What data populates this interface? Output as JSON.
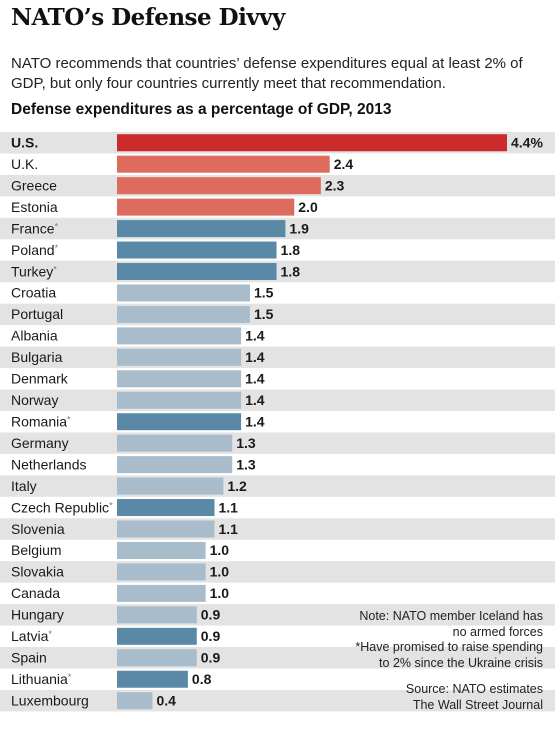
{
  "header": {
    "title": "NATO’s Defense Divvy",
    "subtitle": "NATO recommends that countries’ defense expenditures equal at least 2% of GDP, but only four countries currently meet that recommendation."
  },
  "notes": {
    "line1": "Note: NATO member Iceland has",
    "line2": "no armed forces",
    "line3": "*Have promised to raise spending",
    "line4": "to 2% since the Ukraine crisis",
    "source1": "Source: NATO estimates",
    "source2": "The Wall Street Journal"
  },
  "colors": {
    "us": "#cc2b2b",
    "above_target": "#dd6b5e",
    "pledged": "#5a89a8",
    "other": "#a8bccb",
    "stripe": "#e3e3e3"
  },
  "chart_data": {
    "type": "bar",
    "orientation": "horizontal",
    "title": "Defense expenditures as a percentage of GDP, 2013",
    "xlim": [
      0,
      4.4
    ],
    "categories": [
      "U.S.",
      "U.K.",
      "Greece",
      "Estonia",
      "France",
      "Poland",
      "Turkey",
      "Croatia",
      "Portugal",
      "Albania",
      "Bulgaria",
      "Denmark",
      "Norway",
      "Romania",
      "Germany",
      "Netherlands",
      "Italy",
      "Czech Republic",
      "Slovenia",
      "Belgium",
      "Slovakia",
      "Canada",
      "Hungary",
      "Latvia",
      "Spain",
      "Lithuania",
      "Luxembourg"
    ],
    "values": [
      4.4,
      2.4,
      2.3,
      2.0,
      1.9,
      1.8,
      1.8,
      1.5,
      1.5,
      1.4,
      1.4,
      1.4,
      1.4,
      1.4,
      1.3,
      1.3,
      1.2,
      1.1,
      1.1,
      1.0,
      1.0,
      1.0,
      0.9,
      0.9,
      0.9,
      0.8,
      0.4
    ],
    "value_labels": [
      "4.4%",
      "2.4",
      "2.3",
      "2.0",
      "1.9",
      "1.8",
      "1.8",
      "1.5",
      "1.5",
      "1.4",
      "1.4",
      "1.4",
      "1.4",
      "1.4",
      "1.3",
      "1.3",
      "1.2",
      "1.1",
      "1.1",
      "1.0",
      "1.0",
      "1.0",
      "0.9",
      "0.9",
      "0.9",
      "0.8",
      "0.4"
    ],
    "pledged": [
      false,
      false,
      false,
      false,
      true,
      true,
      true,
      false,
      false,
      false,
      false,
      false,
      false,
      true,
      false,
      false,
      false,
      true,
      false,
      false,
      false,
      false,
      false,
      true,
      false,
      true,
      false
    ],
    "pledge_marker": "*"
  }
}
